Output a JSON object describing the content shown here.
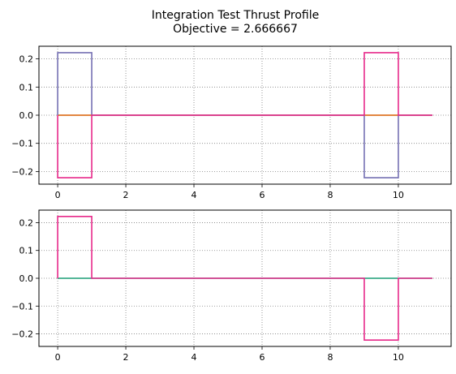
{
  "figure": {
    "title_line1": "Integration Test  Thrust Profile",
    "title_line2": "Objective = 2.666667"
  },
  "chart_data": [
    {
      "type": "line",
      "title": "",
      "xlabel": "",
      "ylabel": "",
      "xlim": [
        -0.55,
        11.55
      ],
      "ylim": [
        -0.245,
        0.245
      ],
      "xticks": [
        0,
        2,
        4,
        6,
        8,
        10
      ],
      "yticks": [
        -0.2,
        -0.1,
        0.0,
        0.1,
        0.2
      ],
      "xtick_labels": [
        "0",
        "2",
        "4",
        "6",
        "8",
        "10"
      ],
      "ytick_labels": [
        "−0.2",
        "−0.1",
        "0.0",
        "0.1",
        "0.2"
      ],
      "grid": true,
      "step": "post",
      "series": [
        {
          "color": "#d95f02",
          "x": [
            0,
            1,
            9,
            10,
            11
          ],
          "y": [
            0,
            0,
            0,
            0,
            0
          ]
        },
        {
          "color": "#7570b3",
          "x": [
            0,
            0,
            1,
            1,
            9,
            9,
            10,
            10,
            11
          ],
          "y": [
            0,
            0.2222,
            0.2222,
            0,
            0,
            -0.2222,
            -0.2222,
            0,
            0
          ]
        },
        {
          "color": "#e7298a",
          "x": [
            0,
            0,
            1,
            1,
            9,
            9,
            10,
            10,
            11
          ],
          "y": [
            0,
            -0.2222,
            -0.2222,
            0,
            0,
            0.2222,
            0.2222,
            0,
            0
          ]
        }
      ]
    },
    {
      "type": "line",
      "title": "",
      "xlabel": "",
      "ylabel": "",
      "xlim": [
        -0.55,
        11.55
      ],
      "ylim": [
        -0.245,
        0.245
      ],
      "xticks": [
        0,
        2,
        4,
        6,
        8,
        10
      ],
      "yticks": [
        -0.2,
        -0.1,
        0.0,
        0.1,
        0.2
      ],
      "xtick_labels": [
        "0",
        "2",
        "4",
        "6",
        "8",
        "10"
      ],
      "ytick_labels": [
        "−0.2",
        "−0.1",
        "0.0",
        "0.1",
        "0.2"
      ],
      "grid": true,
      "step": "post",
      "series": [
        {
          "color": "#1b9e77",
          "x": [
            0,
            1,
            9,
            10,
            11
          ],
          "y": [
            0,
            0,
            0,
            0,
            0
          ]
        },
        {
          "color": "#e7298a",
          "x": [
            0,
            0,
            1,
            1,
            9,
            9,
            10,
            10,
            11
          ],
          "y": [
            0,
            0.2222,
            0.2222,
            0,
            0,
            -0.2222,
            -0.2222,
            0,
            0
          ]
        }
      ]
    }
  ]
}
